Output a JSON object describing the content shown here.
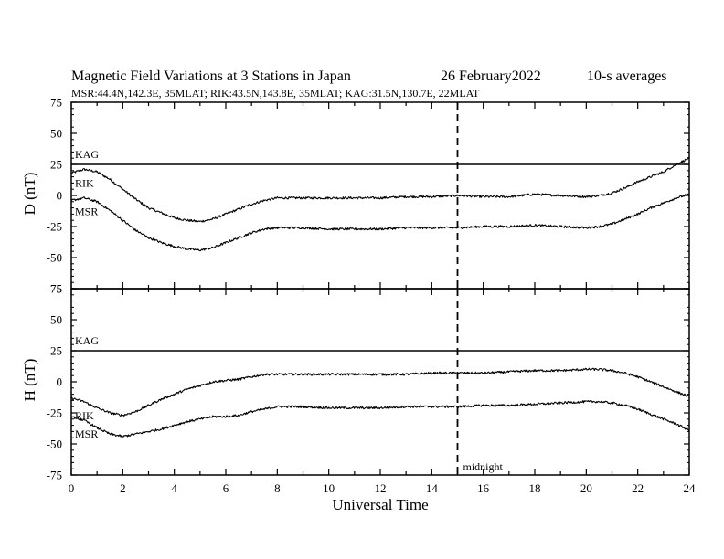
{
  "chart_data": [
    {
      "type": "line",
      "panel": "D",
      "title": "Magnetic Field Variations at 3 Stations in Japan",
      "date": "26 February2022",
      "averaging": "10-s averages",
      "subtitle": "MSR:44.4N,142.3E, 35MLAT;  RIK:43.5N,143.8E, 35MLAT;  KAG:31.5N,130.7E, 22MLAT",
      "xlabel": "Universal Time",
      "ylabel": "D (nT)",
      "xlim": [
        0,
        24
      ],
      "ylim": [
        -75,
        75
      ],
      "yticks": [
        "75",
        "50",
        "25",
        "0",
        "-25",
        "-50",
        "-75"
      ],
      "grid": false,
      "series": [
        {
          "name": "KAG",
          "x": [
            0,
            24
          ],
          "y": [
            25,
            25
          ]
        },
        {
          "name": "RIK",
          "x": [
            0,
            0.5,
            1,
            1.5,
            2,
            2.5,
            3,
            3.5,
            4,
            4.5,
            5,
            5.5,
            6,
            6.5,
            7,
            7.5,
            8,
            9,
            10,
            11,
            12,
            13,
            14,
            15,
            16,
            17,
            18,
            19,
            20,
            20.5,
            21,
            21.5,
            22,
            22.5,
            23,
            23.5,
            24
          ],
          "y": [
            18,
            21,
            19,
            13,
            5,
            -3,
            -10,
            -14,
            -18,
            -20,
            -21,
            -19,
            -15,
            -11,
            -7,
            -4,
            -2,
            -2,
            -2,
            -2,
            -2,
            -1,
            -1,
            0,
            -1,
            -1,
            1,
            0,
            -1,
            0,
            2,
            6,
            11,
            15,
            19,
            25,
            30
          ]
        },
        {
          "name": "MSR",
          "x": [
            0,
            0.5,
            1,
            1.5,
            2,
            2.5,
            3,
            3.5,
            4,
            4.5,
            5,
            5.5,
            6,
            6.5,
            7,
            7.5,
            8,
            9,
            10,
            11,
            12,
            13,
            14,
            15,
            16,
            17,
            18,
            19,
            20,
            20.5,
            21,
            21.5,
            22,
            22.5,
            23,
            23.5,
            24
          ],
          "y": [
            -4,
            -2,
            -5,
            -12,
            -20,
            -28,
            -34,
            -38,
            -41,
            -43,
            -44,
            -42,
            -38,
            -34,
            -30,
            -27,
            -26,
            -26,
            -27,
            -27,
            -27,
            -26,
            -26,
            -26,
            -25,
            -25,
            -24,
            -25,
            -26,
            -25,
            -23,
            -19,
            -15,
            -10,
            -6,
            -2,
            1
          ]
        }
      ],
      "annotations": [
        {
          "text": "",
          "x": 15,
          "style": "dashed vertical line"
        }
      ]
    },
    {
      "type": "line",
      "panel": "H",
      "xlabel": "Universal Time",
      "ylabel": "H (nT)",
      "xlim": [
        0,
        24
      ],
      "ylim": [
        -75,
        75
      ],
      "yticks": [
        "75",
        "50",
        "25",
        "0",
        "-25",
        "-50",
        "-75"
      ],
      "xticks": [
        "0",
        "2",
        "4",
        "6",
        "8",
        "10",
        "12",
        "14",
        "16",
        "18",
        "20",
        "22",
        "24"
      ],
      "grid": false,
      "series": [
        {
          "name": "KAG",
          "x": [
            0,
            24
          ],
          "y": [
            25,
            25
          ]
        },
        {
          "name": "RIK",
          "x": [
            0,
            0.5,
            1,
            1.5,
            2,
            2.5,
            3,
            3.5,
            4,
            4.5,
            5,
            5.5,
            6,
            6.5,
            7,
            7.5,
            8,
            9,
            10,
            11,
            12,
            13,
            14,
            15,
            16,
            17,
            18,
            19,
            20,
            20.5,
            21,
            21.5,
            22,
            22.5,
            23,
            23.5,
            24
          ],
          "y": [
            -13,
            -16,
            -21,
            -25,
            -27,
            -24,
            -19,
            -14,
            -10,
            -6,
            -3,
            0,
            1,
            2,
            4,
            6,
            6,
            6,
            6,
            6,
            6,
            6,
            7,
            7,
            7,
            8,
            9,
            9,
            10,
            10,
            9,
            7,
            4,
            0,
            -4,
            -8,
            -12
          ]
        },
        {
          "name": "MSR",
          "x": [
            0,
            0.5,
            1,
            1.5,
            2,
            2.5,
            3,
            3.5,
            4,
            4.5,
            5,
            5.5,
            6,
            6.5,
            7,
            7.5,
            8,
            9,
            10,
            11,
            12,
            13,
            14,
            15,
            16,
            17,
            18,
            19,
            20,
            20.5,
            21,
            21.5,
            22,
            22.5,
            23,
            23.5,
            24
          ],
          "y": [
            -28,
            -31,
            -37,
            -42,
            -44,
            -42,
            -40,
            -38,
            -35,
            -32,
            -30,
            -28,
            -28,
            -27,
            -24,
            -22,
            -20,
            -20,
            -21,
            -21,
            -21,
            -20,
            -20,
            -20,
            -19,
            -19,
            -18,
            -17,
            -16,
            -16,
            -17,
            -19,
            -22,
            -26,
            -30,
            -34,
            -39
          ]
        }
      ],
      "annotations": [
        {
          "text": "midnight",
          "x": 15,
          "style": "dashed vertical line"
        }
      ]
    }
  ]
}
